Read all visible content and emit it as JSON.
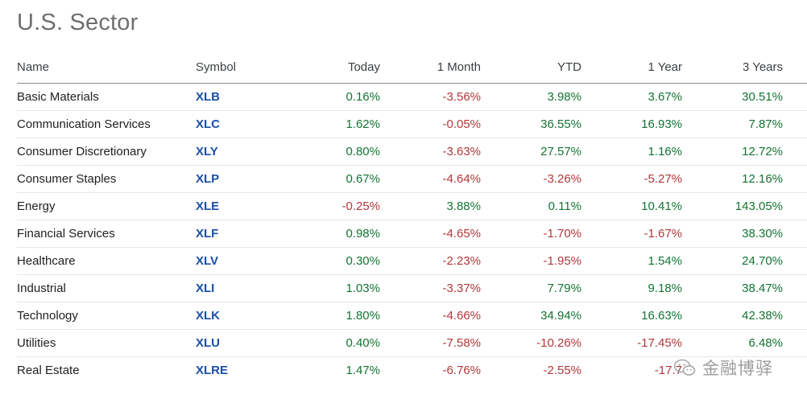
{
  "page": {
    "title": "U.S. Sector"
  },
  "table": {
    "headers": {
      "name": "Name",
      "symbol": "Symbol",
      "today": "Today",
      "one_month": "1 Month",
      "ytd": "YTD",
      "one_year": "1 Year",
      "three_years": "3 Years"
    },
    "rows": [
      {
        "name": "Basic Materials",
        "symbol": "XLB",
        "today": "0.16%",
        "one_month": "-3.56%",
        "ytd": "3.98%",
        "one_year": "3.67%",
        "three_years": "30.51%"
      },
      {
        "name": "Communication Services",
        "symbol": "XLC",
        "today": "1.62%",
        "one_month": "-0.05%",
        "ytd": "36.55%",
        "one_year": "16.93%",
        "three_years": "7.87%"
      },
      {
        "name": "Consumer Discretionary",
        "symbol": "XLY",
        "today": "0.80%",
        "one_month": "-3.63%",
        "ytd": "27.57%",
        "one_year": "1.16%",
        "three_years": "12.72%"
      },
      {
        "name": "Consumer Staples",
        "symbol": "XLP",
        "today": "0.67%",
        "one_month": "-4.64%",
        "ytd": "-3.26%",
        "one_year": "-5.27%",
        "three_years": "12.16%"
      },
      {
        "name": "Energy",
        "symbol": "XLE",
        "today": "-0.25%",
        "one_month": "3.88%",
        "ytd": "0.11%",
        "one_year": "10.41%",
        "three_years": "143.05%"
      },
      {
        "name": "Financial Services",
        "symbol": "XLF",
        "today": "0.98%",
        "one_month": "-4.65%",
        "ytd": "-1.70%",
        "one_year": "-1.67%",
        "three_years": "38.30%"
      },
      {
        "name": "Healthcare",
        "symbol": "XLV",
        "today": "0.30%",
        "one_month": "-2.23%",
        "ytd": "-1.95%",
        "one_year": "1.54%",
        "three_years": "24.70%"
      },
      {
        "name": "Industrial",
        "symbol": "XLI",
        "today": "1.03%",
        "one_month": "-3.37%",
        "ytd": "7.79%",
        "one_year": "9.18%",
        "three_years": "38.47%"
      },
      {
        "name": "Technology",
        "symbol": "XLK",
        "today": "1.80%",
        "one_month": "-4.66%",
        "ytd": "34.94%",
        "one_year": "16.63%",
        "three_years": "42.38%"
      },
      {
        "name": "Utilities",
        "symbol": "XLU",
        "today": "0.40%",
        "one_month": "-7.58%",
        "ytd": "-10.26%",
        "one_year": "-17.45%",
        "three_years": "6.48%"
      },
      {
        "name": "Real Estate",
        "symbol": "XLRE",
        "today": "1.47%",
        "one_month": "-6.76%",
        "ytd": "-2.55%",
        "one_year": "-17.7",
        "three_years": ""
      }
    ]
  },
  "colors": {
    "positive": "#137333",
    "negative": "#b0383a",
    "symbol_link": "#1a4ea8",
    "title": "#6e6e6e"
  },
  "watermark": {
    "icon": "wechat-icon",
    "text": "金融博驿"
  }
}
